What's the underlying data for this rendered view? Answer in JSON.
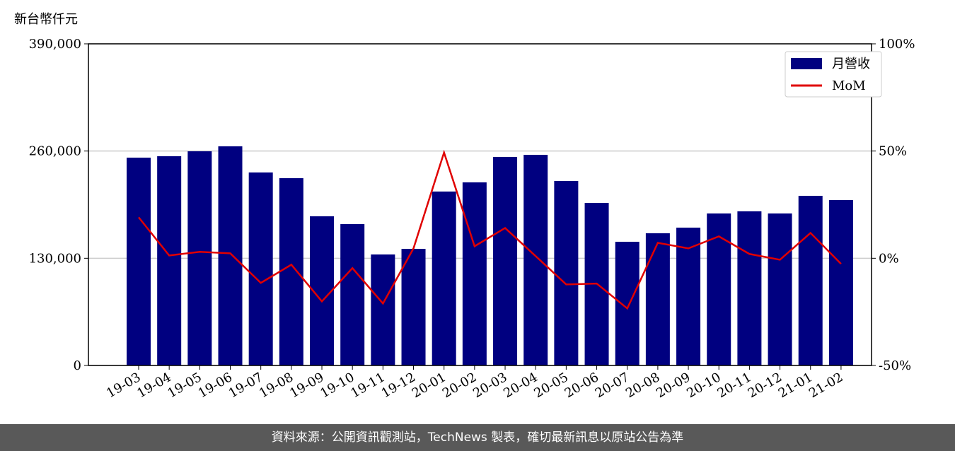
{
  "chart_data": {
    "type": "bar_line",
    "y_label": "新台幣仟元",
    "categories": [
      "19-03",
      "19-04",
      "19-05",
      "19-06",
      "19-07",
      "19-08",
      "19-09",
      "19-10",
      "19-11",
      "19-12",
      "20-01",
      "20-02",
      "20-03",
      "20-04",
      "20-05",
      "20-06",
      "20-07",
      "20-08",
      "20-09",
      "20-10",
      "20-11",
      "20-12",
      "21-01",
      "21-02"
    ],
    "series": [
      {
        "name": "月營收",
        "type": "bar",
        "color": "#000080",
        "values": [
          252000,
          253700,
          259700,
          265700,
          234000,
          227100,
          180900,
          171400,
          134600,
          141400,
          210900,
          222000,
          252900,
          255400,
          223700,
          197100,
          150000,
          160300,
          167100,
          184300,
          186900,
          184300,
          205700,
          200600
        ]
      },
      {
        "name": "MoM",
        "type": "line",
        "axis": "y2",
        "color": "#e00000",
        "values": [
          19.1,
          1.3,
          3.0,
          2.3,
          -11.5,
          -3.0,
          -20.1,
          -4.6,
          -21.1,
          4.6,
          49.3,
          5.6,
          14.1,
          1.0,
          -12.2,
          -11.8,
          -23.4,
          7.2,
          4.6,
          10.2,
          2.0,
          -0.7,
          11.8,
          -2.6
        ]
      }
    ],
    "ylim": [
      0,
      390000
    ],
    "yticks": [
      0,
      {
        "value": 130000,
        "label": "130,000"
      },
      {
        "value": 260000,
        "label": "260,000"
      },
      {
        "value": 390000,
        "label": "390,000"
      }
    ],
    "y2lim": [
      -50,
      100
    ],
    "y2ticks": [
      {
        "value": -50,
        "label": "-50%"
      },
      {
        "value": 0,
        "label": "0%"
      },
      {
        "value": 50,
        "label": "50%"
      },
      {
        "value": 100,
        "label": "100%"
      }
    ],
    "grid": true,
    "legend": "upper right"
  },
  "footer": "資料來源：公開資訊觀測站，TechNews 製表，確切最新訊息以原站公告為準"
}
